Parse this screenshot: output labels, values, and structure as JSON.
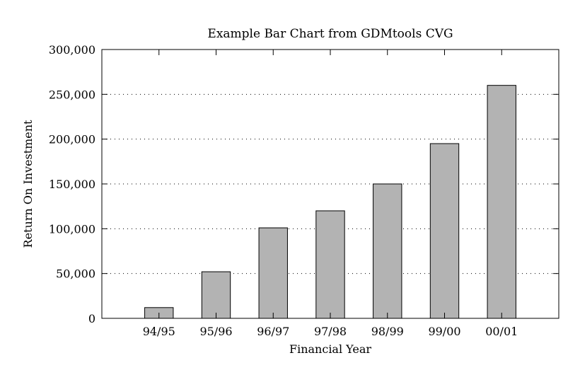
{
  "chart_data": {
    "type": "bar",
    "title": "Example Bar Chart from GDMtools CVG",
    "xlabel": "Financial Year",
    "ylabel": "Return On Investment",
    "categories": [
      "94/95",
      "95/96",
      "96/97",
      "97/98",
      "98/99",
      "99/00",
      "00/01"
    ],
    "values": [
      12000,
      52000,
      101000,
      120000,
      150000,
      195000,
      260000
    ],
    "ylim": [
      0,
      300000
    ],
    "yticks": [
      0,
      50000,
      100000,
      150000,
      200000,
      250000,
      300000
    ],
    "ytick_labels": [
      "0",
      "50,000",
      "100,000",
      "150,000",
      "200,000",
      "250,000",
      "300,000"
    ],
    "grid": "horizontal dotted",
    "bar_color": "#b3b3b3",
    "bar_edge_color": "#000000"
  }
}
